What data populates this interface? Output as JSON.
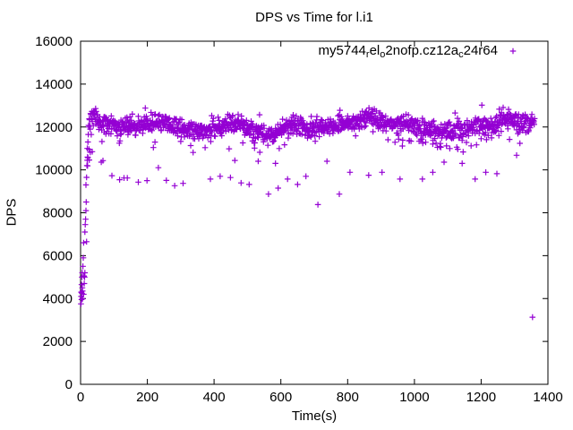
{
  "chart_data": {
    "type": "scatter",
    "title": "DPS vs Time for l.i1",
    "xlabel": "Time(s)",
    "ylabel": "DPS",
    "xlim": [
      0,
      1400
    ],
    "ylim": [
      0,
      16000
    ],
    "xticks": [
      0,
      200,
      400,
      600,
      800,
      1000,
      1200,
      1400
    ],
    "yticks": [
      0,
      2000,
      4000,
      6000,
      8000,
      10000,
      12000,
      14000,
      16000
    ],
    "grid": false,
    "ticks_mirrored": true,
    "legend_position": "top-right-inside",
    "background_color": "#ffffff",
    "axis_color": "#000000",
    "series": [
      {
        "name": "my5744_rel_o2nofp.cz12a_c24r64",
        "label_segments": [
          {
            "text": "my5744"
          },
          {
            "text": "r",
            "sub": true
          },
          {
            "text": "el"
          },
          {
            "text": "o",
            "sub": true
          },
          {
            "text": "2nofp.cz12a"
          },
          {
            "text": "c",
            "sub": true
          },
          {
            "text": "24r64"
          }
        ],
        "color": "#9400D3",
        "marker": "plus",
        "rampup_points": [
          [
            1,
            3750
          ],
          [
            2,
            4100
          ],
          [
            2,
            4300
          ],
          [
            3,
            3950
          ],
          [
            3,
            4650
          ],
          [
            4,
            4250
          ],
          [
            4,
            5000
          ],
          [
            5,
            4500
          ],
          [
            5,
            5200
          ],
          [
            6,
            4000
          ],
          [
            6,
            4350
          ],
          [
            7,
            5500
          ],
          [
            8,
            5900
          ],
          [
            9,
            4200
          ],
          [
            9,
            6600
          ],
          [
            10,
            5050
          ],
          [
            11,
            4700
          ],
          [
            12,
            5000
          ],
          [
            13,
            5200
          ],
          [
            13,
            7100
          ],
          [
            14,
            7450
          ],
          [
            15,
            7700
          ],
          [
            16,
            8100
          ],
          [
            16,
            9300
          ],
          [
            17,
            8500
          ],
          [
            18,
            6650
          ],
          [
            18,
            9650
          ],
          [
            19,
            10200
          ],
          [
            20,
            10450
          ],
          [
            20,
            11000
          ],
          [
            21,
            10600
          ],
          [
            22,
            11300
          ],
          [
            23,
            11650
          ]
        ],
        "outlier_points": [
          [
            21,
            10190
          ],
          [
            22,
            10570
          ],
          [
            25,
            10960
          ],
          [
            26,
            10460
          ],
          [
            29,
            10820
          ],
          [
            35,
            10850
          ],
          [
            62,
            10360
          ],
          [
            67,
            10430
          ],
          [
            94,
            9730
          ],
          [
            117,
            9540
          ],
          [
            130,
            9620
          ],
          [
            140,
            9620
          ],
          [
            173,
            9430
          ],
          [
            199,
            9500
          ],
          [
            233,
            10100
          ],
          [
            257,
            9510
          ],
          [
            282,
            9260
          ],
          [
            307,
            9370
          ],
          [
            389,
            9570
          ],
          [
            418,
            9700
          ],
          [
            449,
            9640
          ],
          [
            462,
            10440
          ],
          [
            481,
            9390
          ],
          [
            505,
            9320
          ],
          [
            532,
            10400
          ],
          [
            537,
            10820
          ],
          [
            563,
            8870
          ],
          [
            584,
            10300
          ],
          [
            592,
            9150
          ],
          [
            620,
            9570
          ],
          [
            650,
            9320
          ],
          [
            675,
            9700
          ],
          [
            711,
            8380
          ],
          [
            738,
            10400
          ],
          [
            775,
            8870
          ],
          [
            807,
            9890
          ],
          [
            863,
            9750
          ],
          [
            903,
            9890
          ],
          [
            957,
            9570
          ],
          [
            1024,
            9570
          ],
          [
            1055,
            9890
          ],
          [
            1089,
            10360
          ],
          [
            1143,
            10300
          ],
          [
            1182,
            9570
          ],
          [
            1214,
            9890
          ],
          [
            1247,
            9820
          ],
          [
            1306,
            10680
          ]
        ],
        "isolated_points": [
          [
            1354,
            3130
          ]
        ],
        "band": {
          "t_start": 24,
          "t_end": 1360,
          "step": 1,
          "seed": 42,
          "jitter": 470,
          "clamp": [
            3000,
            13470
          ],
          "low_fringe": {
            "prob_early": 0.055,
            "prob_late": 0.15,
            "t_split": 880,
            "min": 150,
            "max": 850
          },
          "high_fringe": {
            "prob": 0.04,
            "min": 150,
            "max": 600
          },
          "mean_anchors": [
            [
              24,
              12050
            ],
            [
              28,
              12400
            ],
            [
              42,
              12500
            ],
            [
              60,
              12150
            ],
            [
              90,
              12080
            ],
            [
              130,
              11990
            ],
            [
              170,
              12080
            ],
            [
              210,
              12150
            ],
            [
              250,
              12200
            ],
            [
              290,
              11980
            ],
            [
              330,
              11890
            ],
            [
              360,
              11820
            ],
            [
              400,
              11960
            ],
            [
              440,
              12150
            ],
            [
              470,
              12180
            ],
            [
              510,
              11890
            ],
            [
              545,
              11680
            ],
            [
              575,
              11650
            ],
            [
              605,
              11960
            ],
            [
              645,
              12080
            ],
            [
              685,
              11900
            ],
            [
              725,
              11990
            ],
            [
              765,
              12090
            ],
            [
              800,
              12180
            ],
            [
              835,
              12290
            ],
            [
              870,
              12520
            ],
            [
              895,
              12260
            ],
            [
              930,
              12150
            ],
            [
              965,
              12230
            ],
            [
              1000,
              12080
            ],
            [
              1040,
              11920
            ],
            [
              1080,
              11830
            ],
            [
              1110,
              11790
            ],
            [
              1150,
              11980
            ],
            [
              1195,
              12060
            ],
            [
              1230,
              11990
            ],
            [
              1265,
              12380
            ],
            [
              1300,
              12300
            ],
            [
              1330,
              12150
            ],
            [
              1360,
              12260
            ]
          ]
        }
      }
    ]
  }
}
